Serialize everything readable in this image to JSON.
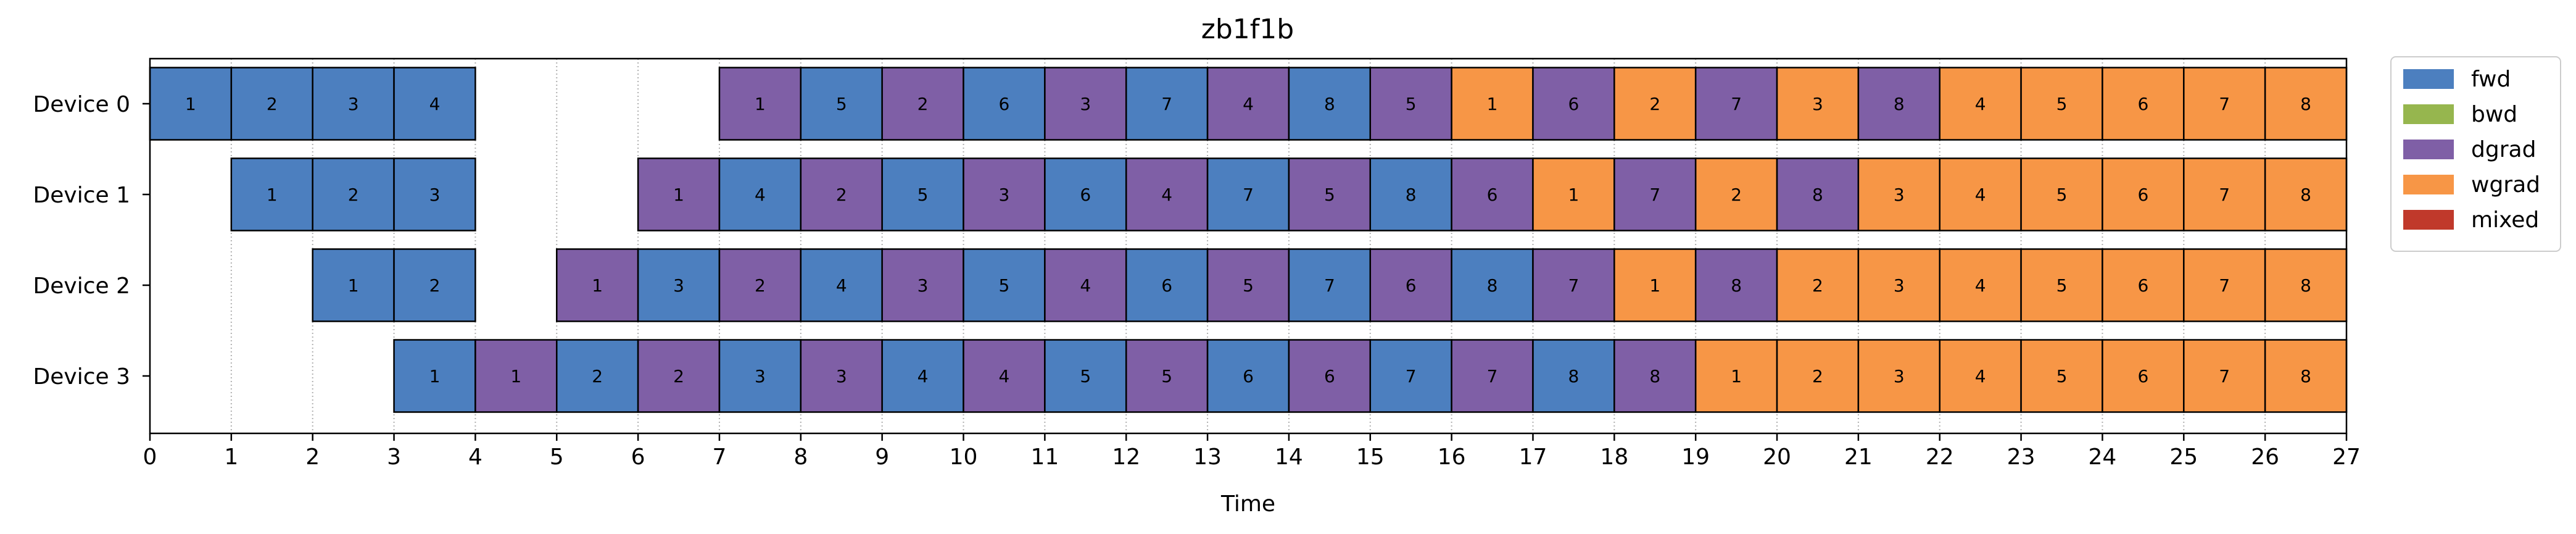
{
  "chart_data": {
    "type": "bar",
    "title": "zb1f1b",
    "xlabel": "Time",
    "ylabel": "",
    "xlim": [
      0,
      27
    ],
    "xticks": [
      0,
      1,
      2,
      3,
      4,
      5,
      6,
      7,
      8,
      9,
      10,
      11,
      12,
      13,
      14,
      15,
      16,
      17,
      18,
      19,
      20,
      21,
      22,
      23,
      24,
      25,
      26,
      27
    ],
    "devices": [
      "Device 0",
      "Device 1",
      "Device 2",
      "Device 3"
    ],
    "legend_position": "outside-top-right",
    "legend": [
      {
        "key": "fwd",
        "label": "fwd",
        "color": "#4c7fbf"
      },
      {
        "key": "bwd",
        "label": "bwd",
        "color": "#96b64e"
      },
      {
        "key": "dgrad",
        "label": "dgrad",
        "color": "#7f5fa6"
      },
      {
        "key": "wgrad",
        "label": "wgrad",
        "color": "#f79646"
      },
      {
        "key": "mixed",
        "label": "mixed",
        "color": "#c0392b"
      }
    ],
    "grid": "vertical dotted lines at integer times",
    "tasks": [
      [
        {
          "start": 0,
          "type": "fwd",
          "label": "1"
        },
        {
          "start": 1,
          "type": "fwd",
          "label": "2"
        },
        {
          "start": 2,
          "type": "fwd",
          "label": "3"
        },
        {
          "start": 3,
          "type": "fwd",
          "label": "4"
        },
        {
          "start": 7,
          "type": "dgrad",
          "label": "1"
        },
        {
          "start": 8,
          "type": "fwd",
          "label": "5"
        },
        {
          "start": 9,
          "type": "dgrad",
          "label": "2"
        },
        {
          "start": 10,
          "type": "fwd",
          "label": "6"
        },
        {
          "start": 11,
          "type": "dgrad",
          "label": "3"
        },
        {
          "start": 12,
          "type": "fwd",
          "label": "7"
        },
        {
          "start": 13,
          "type": "dgrad",
          "label": "4"
        },
        {
          "start": 14,
          "type": "fwd",
          "label": "8"
        },
        {
          "start": 15,
          "type": "dgrad",
          "label": "5"
        },
        {
          "start": 16,
          "type": "wgrad",
          "label": "1"
        },
        {
          "start": 17,
          "type": "dgrad",
          "label": "6"
        },
        {
          "start": 18,
          "type": "wgrad",
          "label": "2"
        },
        {
          "start": 19,
          "type": "dgrad",
          "label": "7"
        },
        {
          "start": 20,
          "type": "wgrad",
          "label": "3"
        },
        {
          "start": 21,
          "type": "dgrad",
          "label": "8"
        },
        {
          "start": 22,
          "type": "wgrad",
          "label": "4"
        },
        {
          "start": 23,
          "type": "wgrad",
          "label": "5"
        },
        {
          "start": 24,
          "type": "wgrad",
          "label": "6"
        },
        {
          "start": 25,
          "type": "wgrad",
          "label": "7"
        },
        {
          "start": 26,
          "type": "wgrad",
          "label": "8"
        }
      ],
      [
        {
          "start": 1,
          "type": "fwd",
          "label": "1"
        },
        {
          "start": 2,
          "type": "fwd",
          "label": "2"
        },
        {
          "start": 3,
          "type": "fwd",
          "label": "3"
        },
        {
          "start": 6,
          "type": "dgrad",
          "label": "1"
        },
        {
          "start": 7,
          "type": "fwd",
          "label": "4"
        },
        {
          "start": 8,
          "type": "dgrad",
          "label": "2"
        },
        {
          "start": 9,
          "type": "fwd",
          "label": "5"
        },
        {
          "start": 10,
          "type": "dgrad",
          "label": "3"
        },
        {
          "start": 11,
          "type": "fwd",
          "label": "6"
        },
        {
          "start": 12,
          "type": "dgrad",
          "label": "4"
        },
        {
          "start": 13,
          "type": "fwd",
          "label": "7"
        },
        {
          "start": 14,
          "type": "dgrad",
          "label": "5"
        },
        {
          "start": 15,
          "type": "fwd",
          "label": "8"
        },
        {
          "start": 16,
          "type": "dgrad",
          "label": "6"
        },
        {
          "start": 17,
          "type": "wgrad",
          "label": "1"
        },
        {
          "start": 18,
          "type": "dgrad",
          "label": "7"
        },
        {
          "start": 19,
          "type": "wgrad",
          "label": "2"
        },
        {
          "start": 20,
          "type": "dgrad",
          "label": "8"
        },
        {
          "start": 21,
          "type": "wgrad",
          "label": "3"
        },
        {
          "start": 22,
          "type": "wgrad",
          "label": "4"
        },
        {
          "start": 23,
          "type": "wgrad",
          "label": "5"
        },
        {
          "start": 24,
          "type": "wgrad",
          "label": "6"
        },
        {
          "start": 25,
          "type": "wgrad",
          "label": "7"
        },
        {
          "start": 26,
          "type": "wgrad",
          "label": "8"
        }
      ],
      [
        {
          "start": 2,
          "type": "fwd",
          "label": "1"
        },
        {
          "start": 3,
          "type": "fwd",
          "label": "2"
        },
        {
          "start": 5,
          "type": "dgrad",
          "label": "1"
        },
        {
          "start": 6,
          "type": "fwd",
          "label": "3"
        },
        {
          "start": 7,
          "type": "dgrad",
          "label": "2"
        },
        {
          "start": 8,
          "type": "fwd",
          "label": "4"
        },
        {
          "start": 9,
          "type": "dgrad",
          "label": "3"
        },
        {
          "start": 10,
          "type": "fwd",
          "label": "5"
        },
        {
          "start": 11,
          "type": "dgrad",
          "label": "4"
        },
        {
          "start": 12,
          "type": "fwd",
          "label": "6"
        },
        {
          "start": 13,
          "type": "dgrad",
          "label": "5"
        },
        {
          "start": 14,
          "type": "fwd",
          "label": "7"
        },
        {
          "start": 15,
          "type": "dgrad",
          "label": "6"
        },
        {
          "start": 16,
          "type": "fwd",
          "label": "8"
        },
        {
          "start": 17,
          "type": "dgrad",
          "label": "7"
        },
        {
          "start": 18,
          "type": "wgrad",
          "label": "1"
        },
        {
          "start": 19,
          "type": "dgrad",
          "label": "8"
        },
        {
          "start": 20,
          "type": "wgrad",
          "label": "2"
        },
        {
          "start": 21,
          "type": "wgrad",
          "label": "3"
        },
        {
          "start": 22,
          "type": "wgrad",
          "label": "4"
        },
        {
          "start": 23,
          "type": "wgrad",
          "label": "5"
        },
        {
          "start": 24,
          "type": "wgrad",
          "label": "6"
        },
        {
          "start": 25,
          "type": "wgrad",
          "label": "7"
        },
        {
          "start": 26,
          "type": "wgrad",
          "label": "8"
        }
      ],
      [
        {
          "start": 3,
          "type": "fwd",
          "label": "1"
        },
        {
          "start": 4,
          "type": "dgrad",
          "label": "1"
        },
        {
          "start": 5,
          "type": "fwd",
          "label": "2"
        },
        {
          "start": 6,
          "type": "dgrad",
          "label": "2"
        },
        {
          "start": 7,
          "type": "fwd",
          "label": "3"
        },
        {
          "start": 8,
          "type": "dgrad",
          "label": "3"
        },
        {
          "start": 9,
          "type": "fwd",
          "label": "4"
        },
        {
          "start": 10,
          "type": "dgrad",
          "label": "4"
        },
        {
          "start": 11,
          "type": "fwd",
          "label": "5"
        },
        {
          "start": 12,
          "type": "dgrad",
          "label": "5"
        },
        {
          "start": 13,
          "type": "fwd",
          "label": "6"
        },
        {
          "start": 14,
          "type": "dgrad",
          "label": "6"
        },
        {
          "start": 15,
          "type": "fwd",
          "label": "7"
        },
        {
          "start": 16,
          "type": "dgrad",
          "label": "7"
        },
        {
          "start": 17,
          "type": "fwd",
          "label": "8"
        },
        {
          "start": 18,
          "type": "dgrad",
          "label": "8"
        },
        {
          "start": 19,
          "type": "wgrad",
          "label": "1"
        },
        {
          "start": 20,
          "type": "wgrad",
          "label": "2"
        },
        {
          "start": 21,
          "type": "wgrad",
          "label": "3"
        },
        {
          "start": 22,
          "type": "wgrad",
          "label": "4"
        },
        {
          "start": 23,
          "type": "wgrad",
          "label": "5"
        },
        {
          "start": 24,
          "type": "wgrad",
          "label": "6"
        },
        {
          "start": 25,
          "type": "wgrad",
          "label": "7"
        },
        {
          "start": 26,
          "type": "wgrad",
          "label": "8"
        }
      ]
    ]
  }
}
